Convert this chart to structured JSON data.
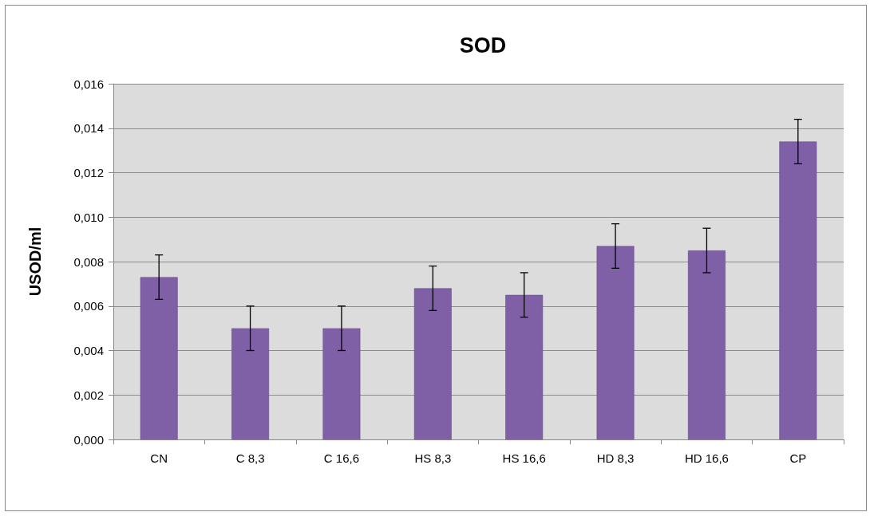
{
  "chart_data": {
    "type": "bar",
    "title": "SOD",
    "ylabel": "USOD/ml",
    "categories": [
      "CN",
      "C 8,3",
      "C 16,6",
      "HS 8,3",
      "HS 16,6",
      "HD 8,3",
      "HD 16,6",
      "CP"
    ],
    "values": [
      0.0073,
      0.005,
      0.005,
      0.0068,
      0.0065,
      0.0087,
      0.0085,
      0.0134
    ],
    "errors": [
      0.001,
      0.001,
      0.001,
      0.001,
      0.001,
      0.001,
      0.001,
      0.001
    ],
    "color": "#7f60a6",
    "ylim": [
      0,
      0.016
    ],
    "yticks": [
      {
        "value": 0,
        "label": "0,000"
      },
      {
        "value": 0.002,
        "label": "0,002"
      },
      {
        "value": 0.004,
        "label": "0,004"
      },
      {
        "value": 0.006,
        "label": "0,006"
      },
      {
        "value": 0.008,
        "label": "0,008"
      },
      {
        "value": 0.01,
        "label": "0,010"
      },
      {
        "value": 0.012,
        "label": "0,012"
      },
      {
        "value": 0.014,
        "label": "0,014"
      },
      {
        "value": 0.016,
        "label": "0,016"
      }
    ],
    "grid": "y"
  }
}
